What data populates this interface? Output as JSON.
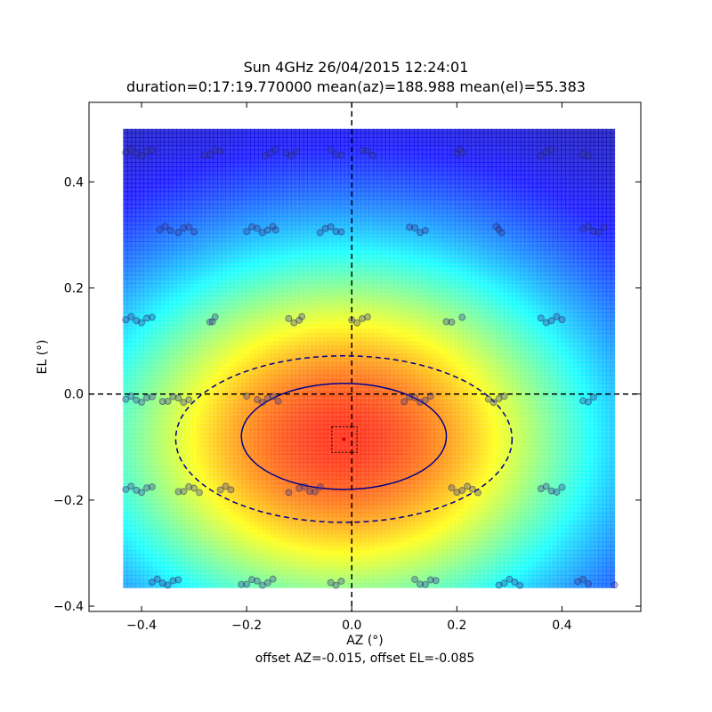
{
  "chart_data": {
    "type": "heatmap",
    "title": "Sun 4GHz 26/04/2015 12:24:01",
    "subtitle": "duration=0:17:19.770000 mean(az)=188.988 mean(el)=55.383",
    "xlabel": "AZ (°)",
    "ylabel": "EL (°)",
    "footnote": "offset AZ=-0.015, offset EL=-0.085",
    "xlim": [
      -0.5,
      0.55
    ],
    "ylim": [
      -0.41,
      0.55
    ],
    "x_ticks": [
      -0.4,
      -0.2,
      0.0,
      0.2,
      0.4
    ],
    "x_tick_labels": [
      "−0.4",
      "−0.2",
      "0.0",
      "0.2",
      "0.4"
    ],
    "y_ticks": [
      -0.4,
      -0.2,
      0.0,
      0.2,
      0.4
    ],
    "y_tick_labels": [
      "−0.4",
      "−0.2",
      "0.0",
      "0.2",
      "0.4"
    ],
    "grid": false,
    "colormap": "jet",
    "heatmap_extent": {
      "x": [
        -0.435,
        0.5
      ],
      "y": [
        -0.365,
        0.5
      ]
    },
    "peak": {
      "az": -0.015,
      "el": -0.085
    },
    "reference_lines": {
      "x": 0.0,
      "y": 0.0,
      "style": "dashed",
      "color": "#000000"
    },
    "beam_contours": [
      {
        "name": "half-power",
        "center": [
          -0.015,
          -0.08
        ],
        "semi_axes": [
          0.195,
          0.1
        ],
        "style": "solid",
        "color": "#00008b"
      },
      {
        "name": "outer",
        "center": [
          -0.015,
          -0.085
        ],
        "semi_axes": [
          0.32,
          0.157
        ],
        "style": "dashed",
        "color": "#00008b"
      }
    ],
    "offset_marker_box": {
      "x": [
        -0.038,
        0.01
      ],
      "y": [
        -0.11,
        -0.062
      ],
      "style": "dotted"
    },
    "scan_points": [
      {
        "el": 0.455,
        "az": [
          -0.43,
          -0.42,
          -0.41,
          -0.4,
          -0.39,
          -0.38,
          -0.28,
          -0.27,
          -0.26,
          -0.25,
          -0.165,
          -0.155,
          -0.145,
          -0.125,
          -0.115,
          -0.105,
          -0.04,
          -0.03,
          -0.02,
          0.02,
          0.03,
          0.04,
          0.2,
          0.205,
          0.21,
          0.36,
          0.37,
          0.38,
          0.44,
          0.45
        ]
      },
      {
        "el": 0.31,
        "az": [
          -0.365,
          -0.355,
          -0.345,
          -0.33,
          -0.32,
          -0.31,
          -0.3,
          -0.2,
          -0.19,
          -0.18,
          -0.17,
          -0.16,
          -0.15,
          -0.145,
          -0.06,
          -0.05,
          -0.04,
          -0.03,
          -0.02,
          0.11,
          0.12,
          0.13,
          0.14,
          0.275,
          0.28,
          0.285,
          0.44,
          0.45,
          0.46,
          0.47,
          0.48
        ]
      },
      {
        "el": 0.14,
        "az": [
          -0.43,
          -0.42,
          -0.41,
          -0.4,
          -0.39,
          -0.38,
          -0.27,
          -0.265,
          -0.26,
          -0.12,
          -0.11,
          -0.1,
          -0.095,
          0.0,
          0.01,
          0.02,
          0.03,
          0.18,
          0.19,
          0.21,
          0.36,
          0.37,
          0.38,
          0.39,
          0.4
        ]
      },
      {
        "el": -0.01,
        "az": [
          -0.43,
          -0.42,
          -0.41,
          -0.4,
          -0.39,
          -0.38,
          -0.36,
          -0.35,
          -0.34,
          -0.33,
          -0.32,
          -0.31,
          -0.2,
          -0.18,
          -0.17,
          -0.16,
          -0.15,
          -0.14,
          0.1,
          0.11,
          0.12,
          0.13,
          0.14,
          0.15,
          0.26,
          0.27,
          0.28,
          0.29,
          0.44,
          0.45,
          0.46
        ]
      },
      {
        "el": -0.18,
        "az": [
          -0.43,
          -0.42,
          -0.41,
          -0.4,
          -0.39,
          -0.38,
          -0.33,
          -0.32,
          -0.31,
          -0.3,
          -0.29,
          -0.25,
          -0.24,
          -0.23,
          -0.12,
          -0.1,
          -0.09,
          -0.08,
          -0.07,
          -0.06,
          0.19,
          0.2,
          0.21,
          0.22,
          0.23,
          0.24,
          0.36,
          0.37,
          0.38,
          0.39,
          0.4
        ]
      },
      {
        "el": -0.355,
        "az": [
          -0.38,
          -0.37,
          -0.36,
          -0.35,
          -0.34,
          -0.33,
          -0.21,
          -0.2,
          -0.19,
          -0.18,
          -0.17,
          -0.16,
          -0.15,
          -0.04,
          -0.03,
          -0.02,
          0.12,
          0.13,
          0.14,
          0.15,
          0.16,
          0.28,
          0.29,
          0.3,
          0.31,
          0.32,
          0.43,
          0.44,
          0.45,
          0.5
        ]
      }
    ]
  }
}
